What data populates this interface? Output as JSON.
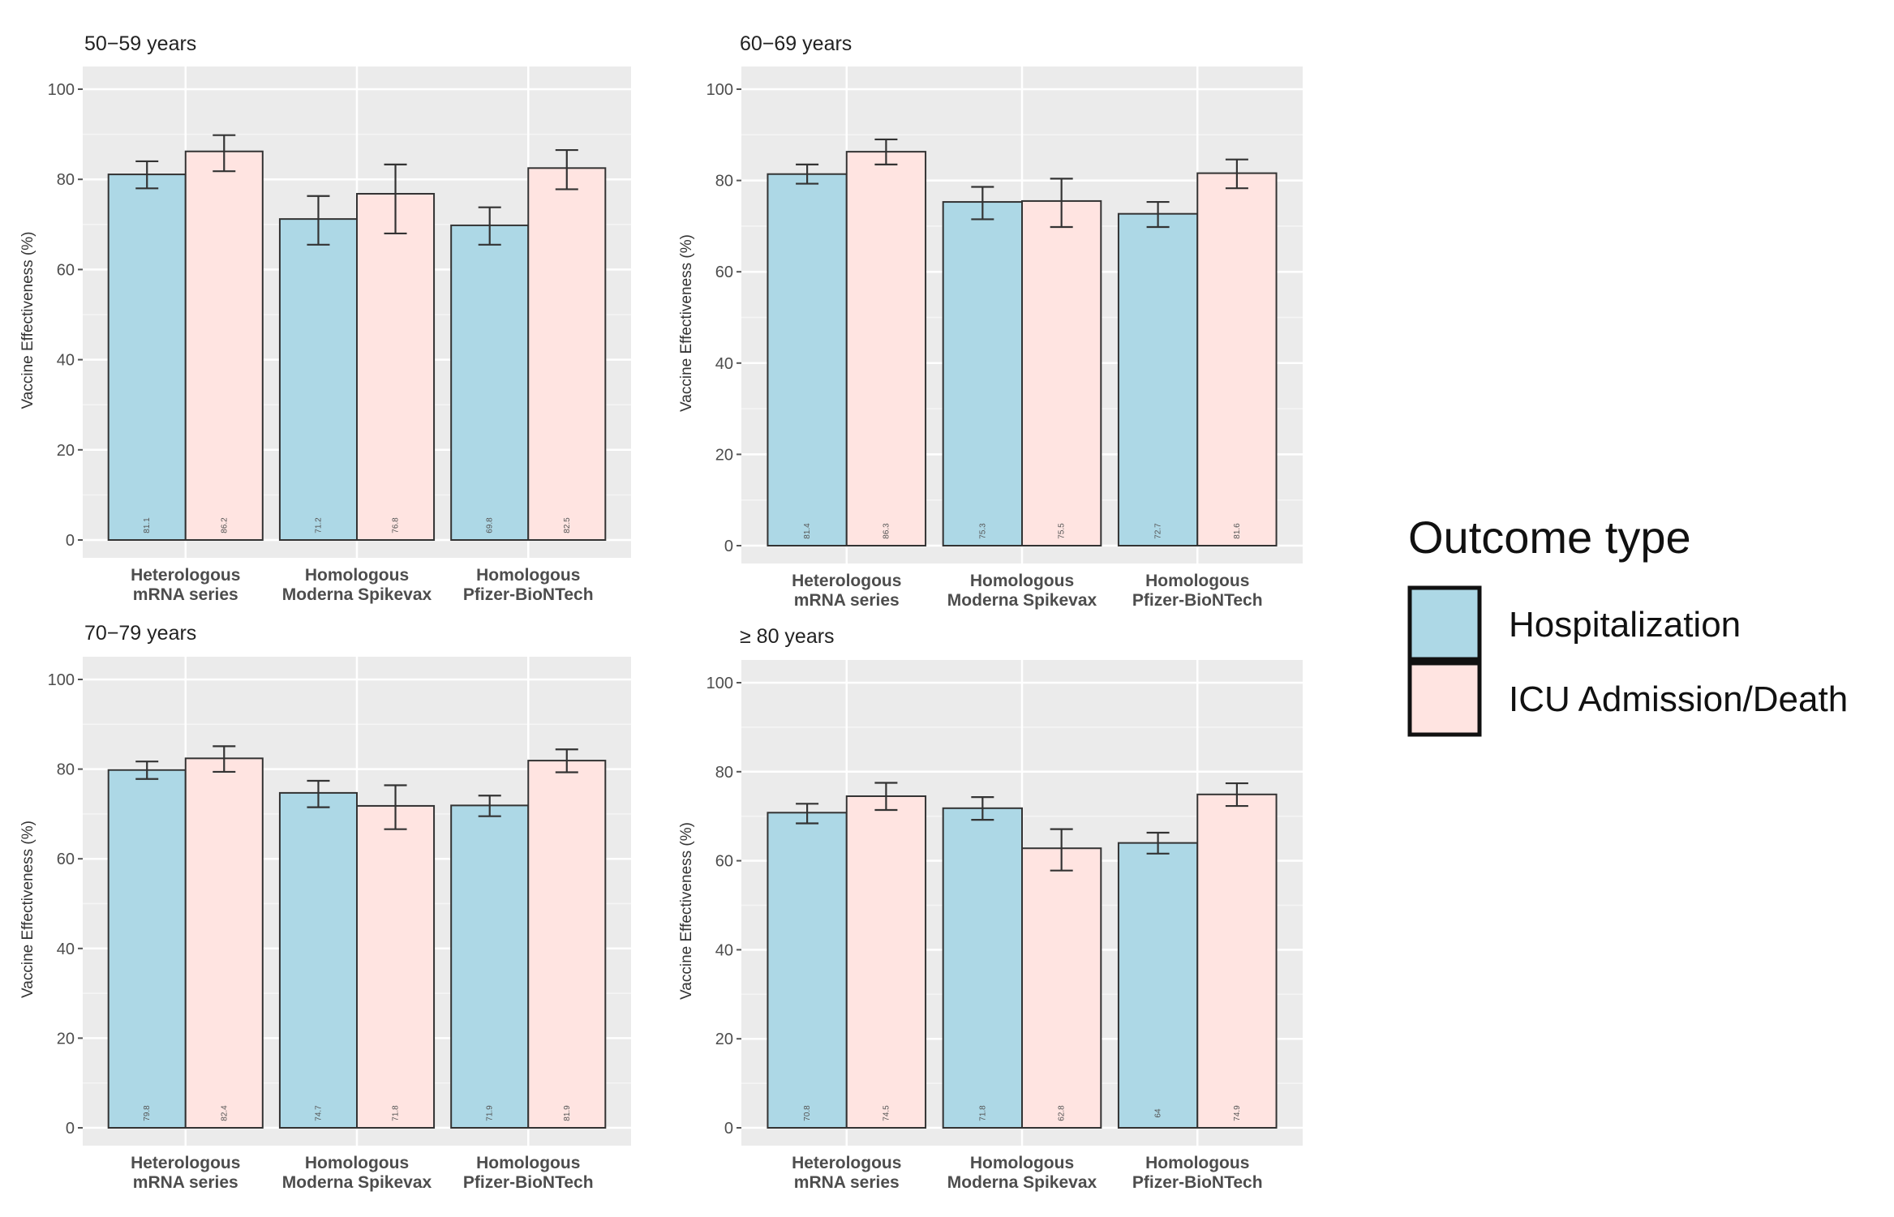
{
  "legend": {
    "title": "Outcome type",
    "items": [
      {
        "label": "Hospitalization",
        "color": "#ADD8E6"
      },
      {
        "label": "ICU Admission/Death",
        "color": "#FFE4E1"
      }
    ]
  },
  "chart_data": [
    {
      "type": "bar",
      "title": "50−59 years",
      "ylabel": "Vaccine Effectiveness (%)",
      "xlabel": "",
      "ylim": [
        0,
        100
      ],
      "yticks": [
        0,
        20,
        40,
        60,
        80,
        100
      ],
      "categories": [
        "Heterologous\nmRNA series",
        "Homologous\nModerna Spikevax",
        "Homologous\nPfizer-BioNTech"
      ],
      "series": [
        {
          "name": "Hospitalization",
          "values": [
            81.1,
            71.2,
            69.8
          ],
          "value_labels": [
            "81.1",
            "71.2",
            "69.8"
          ],
          "ci_low": [
            78.0,
            65.5,
            65.5
          ],
          "ci_high": [
            84.0,
            76.3,
            73.8
          ]
        },
        {
          "name": "ICU Admission/Death",
          "values": [
            86.2,
            76.8,
            82.5
          ],
          "value_labels": [
            "86.2",
            "76.8",
            "82.5"
          ],
          "ci_low": [
            81.8,
            68.0,
            77.8
          ],
          "ci_high": [
            89.8,
            83.3,
            86.5
          ]
        }
      ]
    },
    {
      "type": "bar",
      "title": "60−69 years",
      "ylabel": "Vaccine Effectiveness (%)",
      "xlabel": "",
      "ylim": [
        0,
        100
      ],
      "yticks": [
        0,
        20,
        40,
        60,
        80,
        100
      ],
      "categories": [
        "Heterologous\nmRNA series",
        "Homologous\nModerna Spikevax",
        "Homologous\nPfizer-BioNTech"
      ],
      "series": [
        {
          "name": "Hospitalization",
          "values": [
            81.4,
            75.3,
            72.7
          ],
          "value_labels": [
            "81.4",
            "75.3",
            "72.7"
          ],
          "ci_low": [
            79.3,
            71.5,
            69.8
          ],
          "ci_high": [
            83.5,
            78.6,
            75.3
          ]
        },
        {
          "name": "ICU Admission/Death",
          "values": [
            86.3,
            75.5,
            81.6
          ],
          "value_labels": [
            "86.3",
            "75.5",
            "81.6"
          ],
          "ci_low": [
            83.5,
            69.8,
            78.3
          ],
          "ci_high": [
            89.0,
            80.4,
            84.6
          ]
        }
      ]
    },
    {
      "type": "bar",
      "title": "70−79 years",
      "ylabel": "Vaccine Effectiveness (%)",
      "xlabel": "",
      "ylim": [
        0,
        100
      ],
      "yticks": [
        0,
        20,
        40,
        60,
        80,
        100
      ],
      "categories": [
        "Heterologous\nmRNA series",
        "Homologous\nModerna Spikevax",
        "Homologous\nPfizer-BioNTech"
      ],
      "series": [
        {
          "name": "Hospitalization",
          "values": [
            79.8,
            74.7,
            71.9
          ],
          "value_labels": [
            "79.8",
            "74.7",
            "71.9"
          ],
          "ci_low": [
            77.8,
            71.5,
            69.5
          ],
          "ci_high": [
            81.7,
            77.4,
            74.1
          ]
        },
        {
          "name": "ICU Admission/Death",
          "values": [
            82.4,
            71.8,
            81.9
          ],
          "value_labels": [
            "82.4",
            "71.8",
            "81.9"
          ],
          "ci_low": [
            79.4,
            66.6,
            79.3
          ],
          "ci_high": [
            85.1,
            76.4,
            84.4
          ]
        }
      ]
    },
    {
      "type": "bar",
      "title": "≥ 80 years",
      "ylabel": "Vaccine Effectiveness (%)",
      "xlabel": "",
      "ylim": [
        0,
        100
      ],
      "yticks": [
        0,
        20,
        40,
        60,
        80,
        100
      ],
      "categories": [
        "Heterologous\nmRNA series",
        "Homologous\nModerna Spikevax",
        "Homologous\nPfizer-BioNTech"
      ],
      "series": [
        {
          "name": "Hospitalization",
          "values": [
            70.8,
            71.8,
            64.0
          ],
          "value_labels": [
            "70.8",
            "71.8",
            "64"
          ],
          "ci_low": [
            68.4,
            69.2,
            61.6
          ],
          "ci_high": [
            72.8,
            74.3,
            66.3
          ]
        },
        {
          "name": "ICU Admission/Death",
          "values": [
            74.5,
            62.8,
            74.9
          ],
          "value_labels": [
            "74.5",
            "62.8",
            "74.9"
          ],
          "ci_low": [
            71.4,
            57.8,
            72.3
          ],
          "ci_high": [
            77.5,
            67.1,
            77.4
          ]
        }
      ]
    }
  ]
}
